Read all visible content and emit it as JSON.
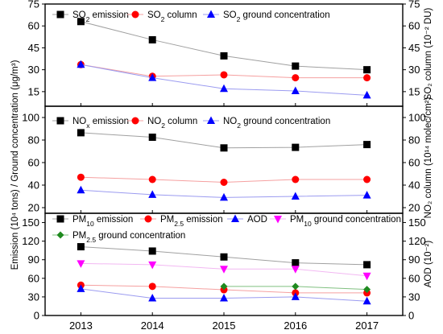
{
  "chart_data": {
    "type": "line",
    "x": [
      2013,
      2014,
      2015,
      2016,
      2017
    ],
    "xlim": [
      2012.5,
      2017.5
    ],
    "left_axis_title": "Emission (10⁴ tons) / Ground concentration (μg/m³)",
    "panels": [
      {
        "id": "so2",
        "ylim": [
          5,
          75
        ],
        "yticks": [
          15,
          30,
          45,
          60,
          75
        ],
        "right_axis": {
          "ylim": [
            5,
            75
          ],
          "yticks": [
            15,
            30,
            45,
            60,
            75
          ],
          "title": "SO₂ column (10⁻² DU)"
        },
        "series": [
          {
            "name": "SO₂ emission",
            "marker": "square",
            "marker_color": "#000000",
            "line_color": "#a0a0a0",
            "values": [
              63,
              50.5,
              39.5,
              32.5,
              30
            ]
          },
          {
            "name": "SO₂ column",
            "marker": "circle",
            "marker_color": "#ff0000",
            "line_color": "#f5a0a0",
            "values": [
              33.5,
              25.5,
              26.5,
              24.5,
              24.5
            ]
          },
          {
            "name": "SO₂ ground concentration",
            "marker": "triangle-up",
            "marker_color": "#0000ff",
            "line_color": "#9b9bf0",
            "values": [
              33.5,
              24.5,
              17,
              15.5,
              12.5
            ]
          }
        ]
      },
      {
        "id": "no",
        "ylim": [
          15,
          110
        ],
        "yticks": [
          20,
          40,
          60,
          80,
          100
        ],
        "right_axis": {
          "ylim": [
            15,
            110
          ],
          "yticks": [
            20,
            40,
            60,
            80,
            100
          ],
          "title": "NO₂ column (10¹⁴ molec/cm²)"
        },
        "series": [
          {
            "name": "NOₓ emission",
            "marker": "square",
            "marker_color": "#000000",
            "line_color": "#a0a0a0",
            "values": [
              86.5,
              82.5,
              73,
              73.5,
              76
            ]
          },
          {
            "name": "NO₂ column",
            "marker": "circle",
            "marker_color": "#ff0000",
            "line_color": "#f5a0a0",
            "values": [
              47,
              45,
              42.5,
              45,
              45
            ]
          },
          {
            "name": "NO₂ ground concentration",
            "marker": "triangle-up",
            "marker_color": "#0000ff",
            "line_color": "#9b9bf0",
            "values": [
              35.5,
              31.5,
              29,
              30,
              31
            ]
          }
        ]
      },
      {
        "id": "pm",
        "ylim": [
          0,
          165
        ],
        "yticks": [
          0,
          30,
          60,
          90,
          120,
          150
        ],
        "right_axis": {
          "ylim": [
            0,
            165
          ],
          "yticks": [
            0,
            30,
            60,
            90,
            120,
            150
          ],
          "title": "AOD (10⁻²)"
        },
        "series": [
          {
            "name": "PM₁₀ emission",
            "marker": "square",
            "marker_color": "#000000",
            "line_color": "#a0a0a0",
            "values": [
              111,
              104,
              94.5,
              85,
              82
            ]
          },
          {
            "name": "PM₂.₅ emission",
            "marker": "circle",
            "marker_color": "#ff0000",
            "line_color": "#f5a0a0",
            "values": [
              49,
              47,
              41.5,
              36.5,
              36.5
            ]
          },
          {
            "name": "AOD",
            "marker": "triangle-up",
            "marker_color": "#0000ff",
            "line_color": "#9b9bf0",
            "values": [
              43,
              28,
              28,
              30,
              23
            ]
          },
          {
            "name": "PM₁₀ ground concentration",
            "marker": "triangle-down",
            "marker_color": "#ff00ff",
            "line_color": "#f2b8f2",
            "values": [
              84,
              82,
              75,
              75,
              64
            ]
          },
          {
            "name": "PM₂.₅ ground concentration",
            "marker": "diamond",
            "marker_color": "#1f8a1f",
            "line_color": "#80c080",
            "values": [
              null,
              null,
              47,
              47,
              42
            ]
          }
        ]
      }
    ]
  }
}
